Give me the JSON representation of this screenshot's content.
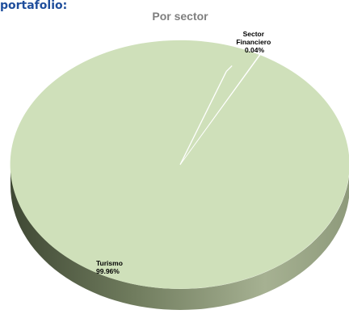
{
  "section_heading": "portafolio:",
  "colors": {
    "top_face": "#cfe0ba",
    "side_dark": "#4f5a42",
    "side_light": "#9aa586",
    "leader": "#ffffff",
    "heading": "#1f4e9c"
  },
  "chart_data": {
    "type": "pie",
    "title": "Por sector",
    "style": "3d",
    "legend": "none",
    "slices": [
      {
        "label": "Turismo",
        "value": 99.96,
        "display": "99.96%"
      },
      {
        "label": "Sector Financiero",
        "label_lines": [
          "Sector",
          "Financiero"
        ],
        "value": 0.04,
        "display": "0.04%"
      }
    ]
  }
}
